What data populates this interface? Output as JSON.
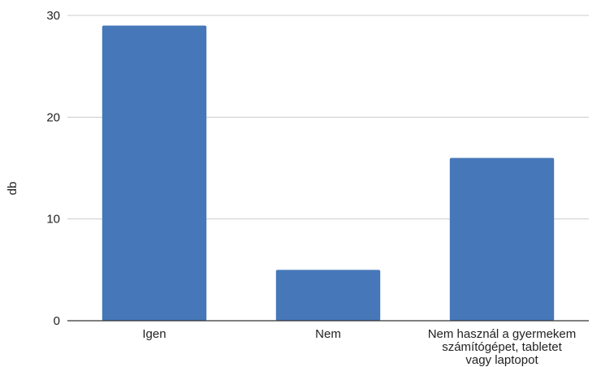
{
  "chart_data": {
    "type": "bar",
    "title": "",
    "xlabel": "",
    "ylabel": "db",
    "categories": [
      "Igen",
      "Nem",
      "Nem használ a gyermekem számítógépet, tabletet vagy laptopot"
    ],
    "category_lines": [
      [
        "Igen"
      ],
      [
        "Nem"
      ],
      [
        "Nem használ a gyermekem",
        "számítógépet, tabletet",
        "vagy laptopot"
      ]
    ],
    "values": [
      29,
      5,
      16
    ],
    "ylim": [
      0,
      30
    ],
    "yticks": [
      0,
      10,
      20,
      30
    ],
    "grid": true,
    "legend": "none",
    "colors": {
      "bar": "#4677b8",
      "grid": "#cccccc",
      "axis": "#333333"
    }
  }
}
